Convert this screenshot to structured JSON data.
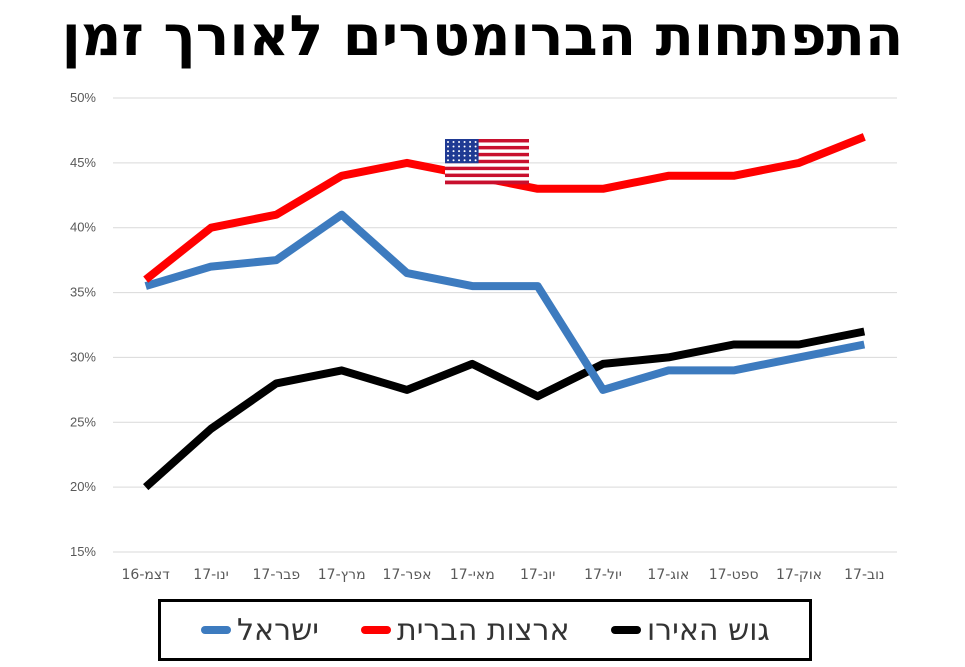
{
  "title": "התפתחות הברומטרים לאורך זמן",
  "colors": {
    "israel": "#3d7bbf",
    "usa": "#ff0000",
    "eurozone": "#000000",
    "grid": "#d9d9d9",
    "tick_text": "#595959"
  },
  "flag_icon": "us-flag-icon",
  "chart_data": {
    "type": "line",
    "title": "התפתחות הברומטרים לאורך זמן",
    "xlabel": "",
    "ylabel": "",
    "categories": [
      "דצמ-16",
      "ינו-17",
      "פבר-17",
      "מרץ-17",
      "אפר-17",
      "מאי-17",
      "יונ-17",
      "יול-17",
      "אוג-17",
      "ספט-17",
      "אוק-17",
      "נוב-17"
    ],
    "ylim": [
      0.15,
      0.5
    ],
    "yticks": [
      0.15,
      0.2,
      0.25,
      0.3,
      0.35,
      0.4,
      0.45,
      0.5
    ],
    "ytick_labels": [
      "15%",
      "20%",
      "25%",
      "30%",
      "35%",
      "40%",
      "45%",
      "50%"
    ],
    "grid": true,
    "legend_position": "bottom",
    "series": [
      {
        "name": "ישראל",
        "key": "israel",
        "values": [
          0.355,
          0.37,
          0.375,
          0.41,
          0.365,
          0.355,
          0.355,
          0.275,
          0.29,
          0.29,
          0.3,
          0.31
        ]
      },
      {
        "name": "ארצות הברית",
        "key": "usa",
        "values": [
          0.36,
          0.4,
          0.41,
          0.44,
          0.45,
          0.44,
          0.43,
          0.43,
          0.44,
          0.44,
          0.45,
          0.47
        ]
      },
      {
        "name": "גוש האירו",
        "key": "eurozone",
        "values": [
          0.2,
          0.245,
          0.28,
          0.29,
          0.275,
          0.295,
          0.27,
          0.295,
          0.3,
          0.31,
          0.31,
          0.32
        ]
      }
    ]
  }
}
